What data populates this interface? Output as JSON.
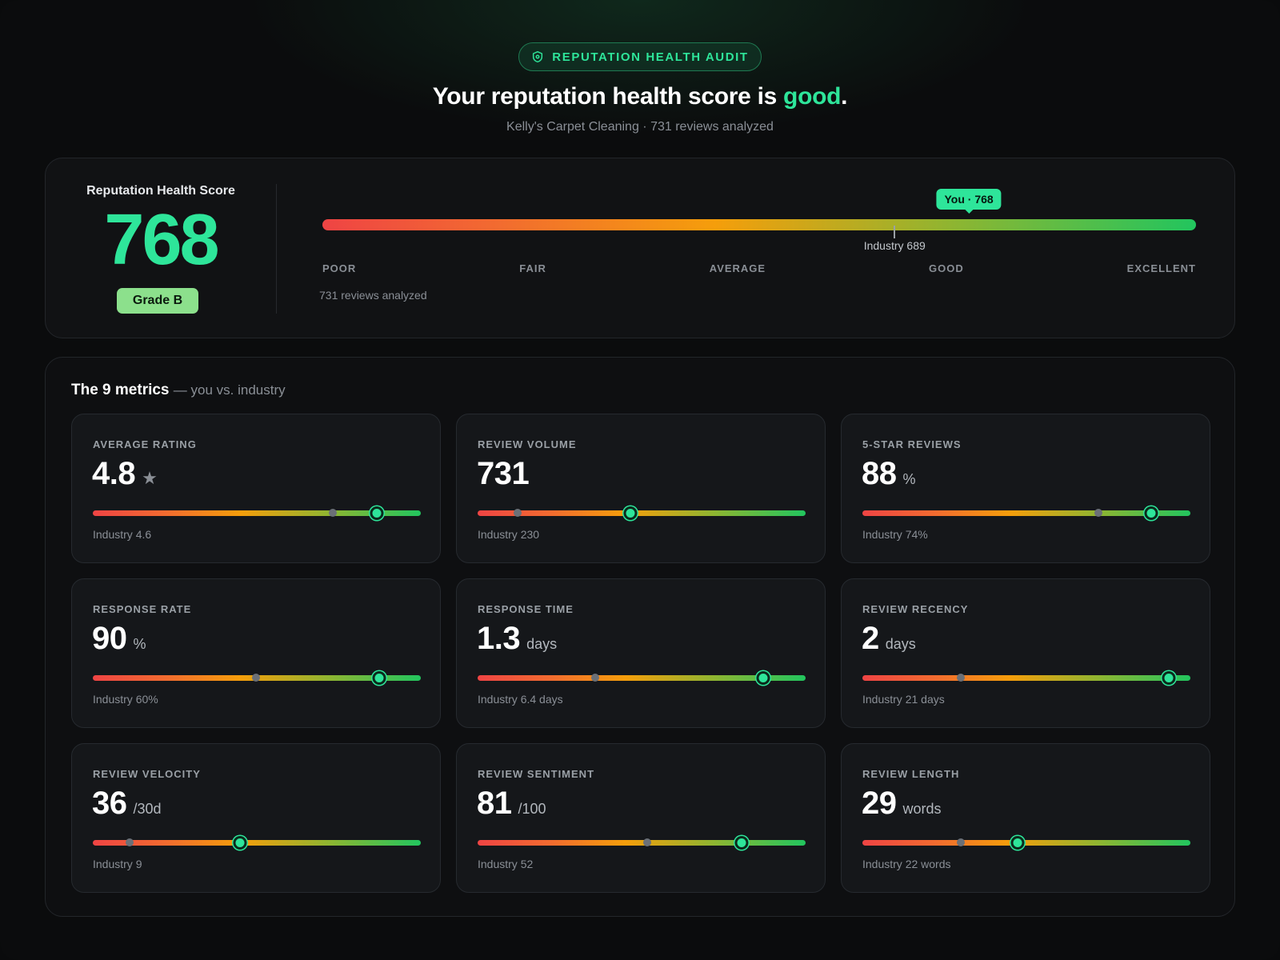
{
  "header": {
    "badge": "REPUTATION HEALTH AUDIT",
    "headline_prefix": "Your reputation health score is ",
    "headline_highlight": "good",
    "headline_suffix": ".",
    "subhead": "Kelly's Carpet Cleaning · 731 reviews analyzed"
  },
  "score": {
    "label": "Reputation Health Score",
    "value": "768",
    "grade": "Grade B",
    "you_label": "You · 768",
    "industry_label": "Industry 689",
    "you_fraction": 0.74,
    "industry_fraction": 0.655,
    "tiers": [
      "POOR",
      "FAIR",
      "AVERAGE",
      "GOOD",
      "EXCELLENT"
    ],
    "reviews_note": "731 reviews analyzed"
  },
  "metrics": {
    "title": "The 9 metrics",
    "subtitle": "— you vs. industry",
    "items": [
      {
        "label": "AVERAGE RATING",
        "value": "4.8",
        "unit": "★",
        "industry": "Industry 4.6",
        "you_fraction": 0.866,
        "industry_fraction": 0.731
      },
      {
        "label": "REVIEW VOLUME",
        "value": "731",
        "unit": "",
        "industry": "Industry 230",
        "you_fraction": 0.466,
        "industry_fraction": 0.122
      },
      {
        "label": "5-STAR REVIEWS",
        "value": "88",
        "unit": "%",
        "industry": "Industry 74%",
        "you_fraction": 0.88,
        "industry_fraction": 0.72
      },
      {
        "label": "RESPONSE RATE",
        "value": "90",
        "unit": "%",
        "industry": "Industry 60%",
        "you_fraction": 0.874,
        "industry_fraction": 0.497
      },
      {
        "label": "RESPONSE TIME",
        "value": "1.3",
        "unit": "days",
        "industry": "Industry 6.4 days",
        "you_fraction": 0.871,
        "industry_fraction": 0.358
      },
      {
        "label": "REVIEW RECENCY",
        "value": "2",
        "unit": "days",
        "industry": "Industry 21 days",
        "you_fraction": 0.934,
        "industry_fraction": 0.3
      },
      {
        "label": "REVIEW VELOCITY",
        "value": "36",
        "unit": "/30d",
        "industry": "Industry 9",
        "you_fraction": 0.448,
        "industry_fraction": 0.112
      },
      {
        "label": "REVIEW SENTIMENT",
        "value": "81",
        "unit": "/100",
        "industry": "Industry 52",
        "you_fraction": 0.806,
        "industry_fraction": 0.518
      },
      {
        "label": "REVIEW LENGTH",
        "value": "29",
        "unit": "words",
        "industry": "Industry 22 words",
        "you_fraction": 0.474,
        "industry_fraction": 0.3
      }
    ]
  },
  "colors": {
    "accent": "#2ee59a",
    "grade": "#8ce08c",
    "poor": "#ef4444",
    "average": "#f59e0b",
    "excellent": "#22c55e"
  }
}
